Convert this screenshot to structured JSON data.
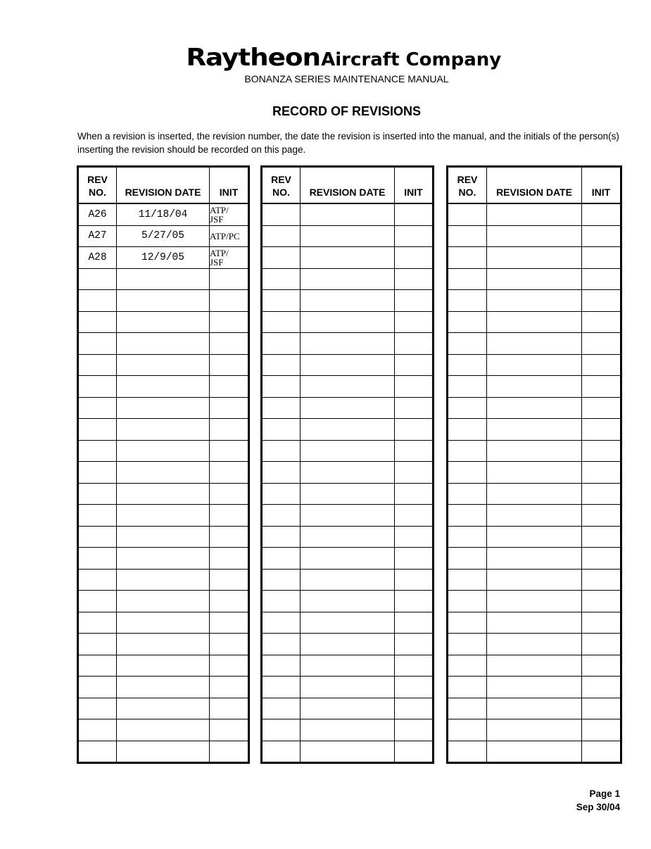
{
  "header": {
    "brand": "Raytheon",
    "company": "Aircraft Company",
    "manual": "BONANZA SERIES MAINTENANCE MANUAL",
    "title": "RECORD OF REVISIONS",
    "intro": "When a revision is inserted, the revision number, the date the revision is inserted into the manual, and the initials of the person(s) inserting the revision should be recorded on this page."
  },
  "columns": {
    "rev_no": "REV\nNO.",
    "revision_date": "REVISION DATE",
    "init": "INIT"
  },
  "tables": [
    {
      "entries": [
        {
          "rev": "A26",
          "date": "11/18/04",
          "init": "ATP/\n  JSF"
        },
        {
          "rev": "A27",
          "date": "5/27/05",
          "init": "ATP/PC"
        },
        {
          "rev": "A28",
          "date": "12/9/05",
          "init": "ATP/\n  JSF"
        }
      ]
    },
    {
      "entries": []
    },
    {
      "entries": []
    }
  ],
  "footer": {
    "page": "Page 1",
    "date": "Sep 30/04"
  }
}
